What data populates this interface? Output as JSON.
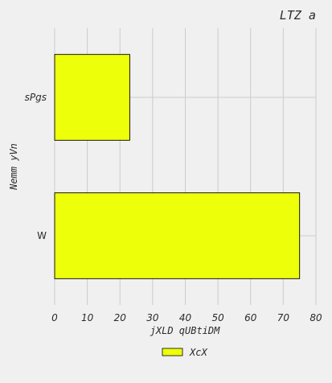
{
  "chart_data": {
    "type": "bar",
    "orientation": "horizontal",
    "title": "LTZ a",
    "xlabel": "jXLD  qUBtiDM",
    "ylabel": "Nemm yVn",
    "categories": [
      "sPgs",
      "W"
    ],
    "series": [
      {
        "name": "XcX",
        "values": [
          23,
          75
        ],
        "color": "#eeff0a"
      }
    ],
    "xlim": [
      0,
      80
    ],
    "xticks": [
      0,
      10,
      20,
      30,
      40,
      50,
      60,
      70,
      80
    ],
    "grid": true,
    "legend_position": "bottom-center"
  },
  "colors": {
    "background": "#f0f0f0",
    "grid": "#cbcbcb",
    "bar_edge": "#000000"
  }
}
